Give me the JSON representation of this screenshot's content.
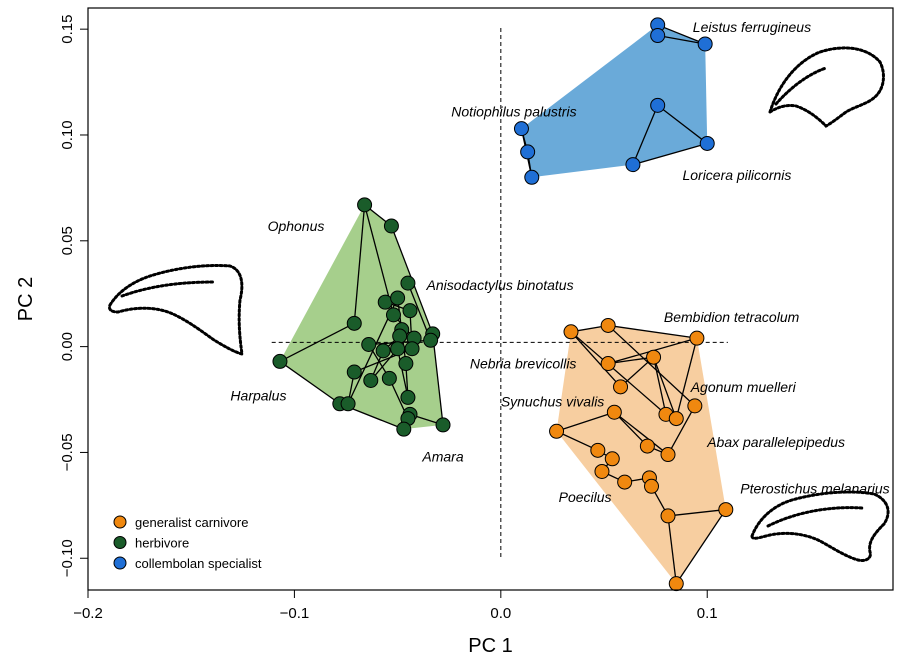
{
  "chart_data": {
    "type": "scatter",
    "title": "",
    "xlabel": "PC 1",
    "ylabel": "PC 2",
    "xlim": [
      -0.2,
      0.19
    ],
    "ylim": [
      -0.115,
      0.16
    ],
    "x_ticks": [
      -0.2,
      -0.1,
      0.0,
      0.1
    ],
    "x_tick_labels": [
      "−0.2",
      "−0.1",
      "0.0",
      "0.1"
    ],
    "y_ticks": [
      -0.1,
      -0.05,
      0.0,
      0.05,
      0.1,
      0.15
    ],
    "y_tick_labels": [
      "−0.10",
      "−0.05",
      "0.00",
      "0.05",
      "0.10",
      "0.15"
    ],
    "grid": false,
    "reference_lines": {
      "vertical_x": 0.0,
      "horizontal_y": 0.002
    },
    "legend": {
      "position": "bottom-left",
      "entries": [
        {
          "label": "generalist carnivore",
          "color": "#f0880f"
        },
        {
          "label": "herbivore",
          "color": "#1a5c2a"
        },
        {
          "label": "collembolan specialist",
          "color": "#1f6fd6"
        }
      ]
    },
    "groups": [
      {
        "name": "collembolan specialist",
        "color": "#1f6fd6",
        "hull_color": "#6aaad9",
        "points": [
          [
            0.076,
            0.152
          ],
          [
            0.076,
            0.147
          ],
          [
            0.099,
            0.143
          ],
          [
            0.076,
            0.114
          ],
          [
            0.1,
            0.096
          ],
          [
            0.064,
            0.086
          ],
          [
            0.01,
            0.103
          ],
          [
            0.013,
            0.092
          ],
          [
            0.015,
            0.08
          ]
        ],
        "edges": [
          [
            0,
            1
          ],
          [
            1,
            2
          ],
          [
            2,
            0
          ],
          [
            3,
            4
          ],
          [
            4,
            5
          ],
          [
            5,
            3
          ],
          [
            6,
            7
          ],
          [
            7,
            8
          ],
          [
            8,
            6
          ]
        ]
      },
      {
        "name": "herbivore",
        "color": "#1a5c2a",
        "hull_color": "#a6cf8c",
        "points": [
          [
            -0.066,
            0.067
          ],
          [
            -0.053,
            0.057
          ],
          [
            -0.045,
            0.03
          ],
          [
            -0.056,
            0.021
          ],
          [
            -0.05,
            0.023
          ],
          [
            -0.052,
            0.015
          ],
          [
            -0.044,
            0.017
          ],
          [
            -0.048,
            0.008
          ],
          [
            -0.033,
            0.006
          ],
          [
            -0.042,
            0.004
          ],
          [
            -0.049,
            0.005
          ],
          [
            -0.071,
            0.011
          ],
          [
            -0.05,
            -0.001
          ],
          [
            -0.064,
            0.001
          ],
          [
            -0.057,
            -0.002
          ],
          [
            -0.043,
            -0.001
          ],
          [
            -0.034,
            0.003
          ],
          [
            -0.046,
            -0.008
          ],
          [
            -0.107,
            -0.007
          ],
          [
            -0.071,
            -0.012
          ],
          [
            -0.063,
            -0.016
          ],
          [
            -0.054,
            -0.015
          ],
          [
            -0.045,
            -0.024
          ],
          [
            -0.078,
            -0.027
          ],
          [
            -0.074,
            -0.027
          ],
          [
            -0.044,
            -0.032
          ],
          [
            -0.045,
            -0.034
          ],
          [
            -0.047,
            -0.039
          ],
          [
            -0.028,
            -0.037
          ]
        ],
        "edges": [
          [
            0,
            1
          ],
          [
            1,
            8
          ],
          [
            8,
            28
          ],
          [
            28,
            25
          ],
          [
            25,
            27
          ],
          [
            27,
            23
          ],
          [
            23,
            18
          ],
          [
            18,
            11
          ],
          [
            11,
            0
          ],
          [
            0,
            5
          ],
          [
            5,
            9
          ],
          [
            2,
            16
          ],
          [
            16,
            13
          ],
          [
            13,
            21
          ],
          [
            21,
            26
          ],
          [
            3,
            6
          ],
          [
            6,
            15
          ],
          [
            15,
            19
          ],
          [
            19,
            24
          ],
          [
            24,
            4
          ],
          [
            4,
            17
          ],
          [
            17,
            22
          ],
          [
            7,
            10
          ],
          [
            10,
            14
          ],
          [
            14,
            20
          ],
          [
            20,
            12
          ],
          [
            12,
            22
          ]
        ]
      },
      {
        "name": "generalist carnivore",
        "color": "#f0880f",
        "hull_color": "#f7ceA0",
        "points": [
          [
            0.034,
            0.007
          ],
          [
            0.052,
            0.01
          ],
          [
            0.095,
            0.004
          ],
          [
            0.052,
            -0.008
          ],
          [
            0.074,
            -0.005
          ],
          [
            0.058,
            -0.019
          ],
          [
            0.094,
            -0.028
          ],
          [
            0.08,
            -0.032
          ],
          [
            0.085,
            -0.034
          ],
          [
            0.027,
            -0.04
          ],
          [
            0.055,
            -0.031
          ],
          [
            0.081,
            -0.051
          ],
          [
            0.071,
            -0.047
          ],
          [
            0.047,
            -0.049
          ],
          [
            0.054,
            -0.053
          ],
          [
            0.049,
            -0.059
          ],
          [
            0.06,
            -0.064
          ],
          [
            0.072,
            -0.062
          ],
          [
            0.073,
            -0.066
          ],
          [
            0.081,
            -0.08
          ],
          [
            0.109,
            -0.077
          ],
          [
            0.085,
            -0.112
          ]
        ],
        "edges": [
          [
            0,
            1
          ],
          [
            1,
            2
          ],
          [
            2,
            3
          ],
          [
            3,
            4
          ],
          [
            4,
            5
          ],
          [
            5,
            0
          ],
          [
            0,
            7
          ],
          [
            7,
            4
          ],
          [
            4,
            8
          ],
          [
            8,
            2
          ],
          [
            1,
            6
          ],
          [
            6,
            11
          ],
          [
            11,
            12
          ],
          [
            12,
            10
          ],
          [
            10,
            9
          ],
          [
            9,
            13
          ],
          [
            13,
            14
          ],
          [
            14,
            15
          ],
          [
            15,
            16
          ],
          [
            16,
            17
          ],
          [
            17,
            18
          ],
          [
            18,
            19
          ],
          [
            19,
            20
          ],
          [
            20,
            21
          ],
          [
            21,
            19
          ],
          [
            10,
            11
          ]
        ]
      }
    ],
    "annotations": [
      {
        "text": "Leistus ferrugineus",
        "x": 0.093,
        "y": 0.151
      },
      {
        "text": "Notiophilus palustris",
        "x": -0.024,
        "y": 0.111
      },
      {
        "text": "Loricera pilicornis",
        "x": 0.088,
        "y": 0.081
      },
      {
        "text": "Ophonus",
        "x": -0.113,
        "y": 0.057
      },
      {
        "text": "Anisodactylus binotatus",
        "x": -0.036,
        "y": 0.029
      },
      {
        "text": "Bembidion tetracolum",
        "x": 0.079,
        "y": 0.014
      },
      {
        "text": "Nebria brevicollis",
        "x": -0.015,
        "y": -0.008
      },
      {
        "text": "Harpalus",
        "x": -0.131,
        "y": -0.023
      },
      {
        "text": "Agonum muelleri",
        "x": 0.092,
        "y": -0.019
      },
      {
        "text": "Synuchus vivalis",
        "x": 0.0,
        "y": -0.026
      },
      {
        "text": "Abax parallelepipedus",
        "x": 0.1,
        "y": -0.045
      },
      {
        "text": "Amara",
        "x": -0.038,
        "y": -0.052
      },
      {
        "text": "Poecilus",
        "x": 0.028,
        "y": -0.071
      },
      {
        "text": "Pterostichus melanarius",
        "x": 0.116,
        "y": -0.067
      }
    ],
    "shape_outlines": [
      "top-right",
      "left",
      "bottom-right"
    ]
  }
}
